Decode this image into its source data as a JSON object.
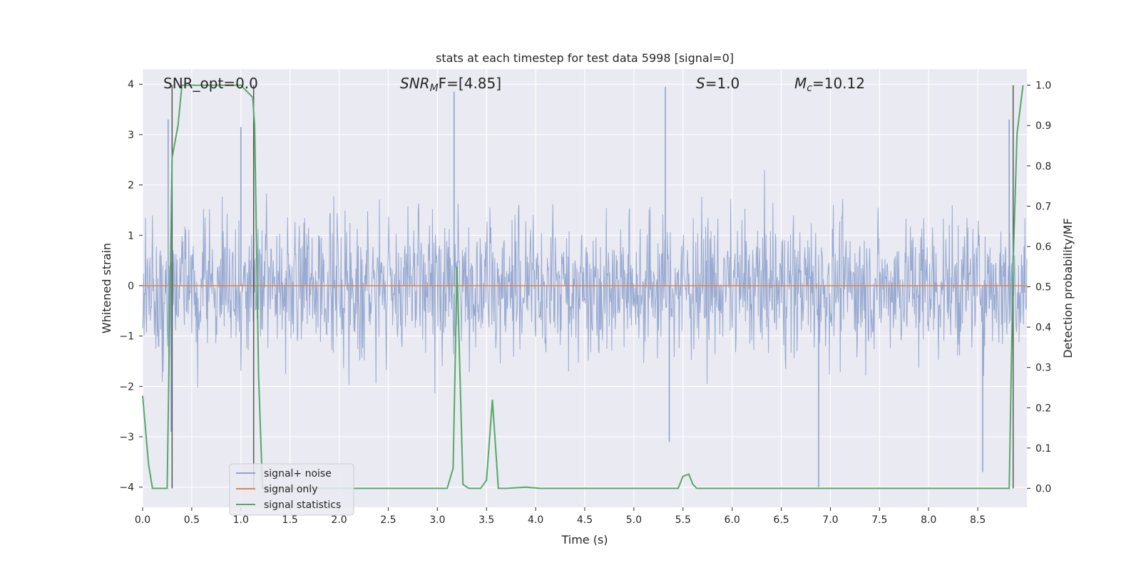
{
  "chart_data": {
    "type": "line",
    "title": "stats at each timestep for test data 5998 [signal=0]",
    "xlabel": "Time (s)",
    "ylabel": "Whitened strain",
    "ylabel_right": "Detection probability/MF",
    "xlim": [
      0,
      9
    ],
    "ylim": [
      -4.4,
      4.3
    ],
    "ylim_right": [
      -0.047,
      1.04
    ],
    "x_ticks": [
      0.0,
      0.5,
      1.0,
      1.5,
      2.0,
      2.5,
      3.0,
      3.5,
      4.0,
      4.5,
      5.0,
      5.5,
      6.0,
      6.5,
      7.0,
      7.5,
      8.0,
      8.5
    ],
    "x_tick_labels": [
      "0.0",
      "0.5",
      "1.0",
      "1.5",
      "2.0",
      "2.5",
      "3.0",
      "3.5",
      "4.0",
      "4.5",
      "5.0",
      "5.5",
      "6.0",
      "6.5",
      "7.0",
      "7.5",
      "8.0",
      "8.5"
    ],
    "y_ticks": [
      -4,
      -3,
      -2,
      -1,
      0,
      1,
      2,
      3,
      4
    ],
    "y_tick_labels": [
      "−4",
      "−3",
      "−2",
      "−1",
      "0",
      "1",
      "2",
      "3",
      "4"
    ],
    "y_right_ticks": [
      0.0,
      0.1,
      0.2,
      0.3,
      0.4,
      0.5,
      0.6,
      0.7,
      0.8,
      0.9,
      1.0
    ],
    "y_right_tick_labels": [
      "0.0",
      "0.1",
      "0.2",
      "0.3",
      "0.4",
      "0.5",
      "0.6",
      "0.7",
      "0.8",
      "0.9",
      "1.0"
    ],
    "annotations": {
      "snr_opt": "SNR_opt=0.0",
      "snr_mf_prefix": "SNR",
      "snr_mf_sub": "M",
      "snr_mf_suffix": "F=[4.85]",
      "s_prefix": "S",
      "s_value": "=1.0",
      "mc_prefix": "M",
      "mc_sub": "c",
      "mc_value": "=10.12"
    },
    "legend": {
      "position": "lower-left",
      "entries": [
        "signal+ noise",
        "signal only",
        "signal statistics"
      ]
    },
    "colors": {
      "noise": "#8fa3cd",
      "signal": "#dd8452",
      "stats": "#55a868",
      "vline": "#555555",
      "background": "#eaeaf2",
      "grid": "#ffffff"
    },
    "series": [
      {
        "name": "signal statistics",
        "axis": "right",
        "x": [
          0.0,
          0.06,
          0.1,
          0.2,
          0.25,
          0.3,
          0.36,
          0.4,
          1.0,
          1.12,
          1.14,
          1.18,
          1.22,
          3.1,
          3.16,
          3.2,
          3.26,
          3.32,
          3.44,
          3.5,
          3.56,
          3.62,
          3.7,
          3.9,
          4.05,
          5.45,
          5.5,
          5.56,
          5.6,
          5.64,
          8.82,
          8.86,
          8.9,
          8.96
        ],
        "values": [
          0.23,
          0.06,
          0.0,
          0.0,
          0.0,
          0.82,
          0.9,
          1.0,
          1.0,
          0.97,
          0.9,
          0.28,
          0.0,
          0.0,
          0.05,
          0.55,
          0.01,
          0.0,
          0.0,
          0.02,
          0.22,
          0.0,
          0.0,
          0.003,
          0.0,
          0.0,
          0.03,
          0.035,
          0.01,
          0.0,
          0.0,
          0.56,
          0.88,
          1.0
        ]
      },
      {
        "name": "signal only",
        "axis": "left",
        "x": [
          0.0,
          9.0
        ],
        "values": [
          0.0,
          0.0
        ]
      },
      {
        "name": "signal+ noise",
        "axis": "left",
        "description_values": "dense noise trace",
        "spikes": [
          {
            "x": 0.26,
            "y": 3.3
          },
          {
            "x": 0.29,
            "y": -2.9
          },
          {
            "x": 1.0,
            "y": 3.15
          },
          {
            "x": 3.17,
            "y": 3.85
          },
          {
            "x": 5.32,
            "y": 3.95
          },
          {
            "x": 5.36,
            "y": -3.1
          },
          {
            "x": 6.88,
            "y": -4.0
          },
          {
            "x": 8.55,
            "y": -3.7
          },
          {
            "x": 8.82,
            "y": 3.3
          }
        ]
      }
    ],
    "vlines": [
      0.3,
      1.13,
      8.86
    ]
  }
}
